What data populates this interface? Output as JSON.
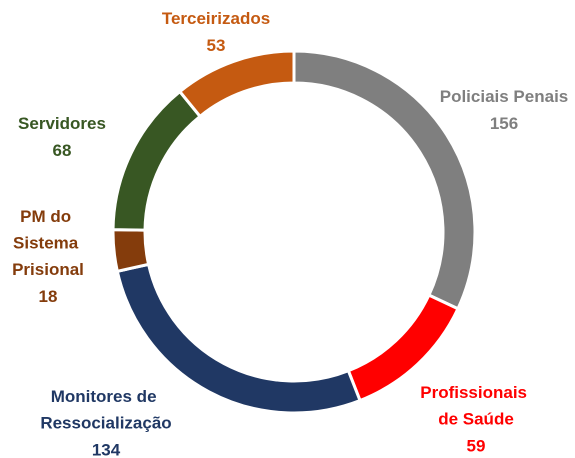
{
  "chart_data": {
    "type": "donut",
    "categories": [
      "Policiais Penais",
      "Profissionais de Saúde",
      "Monitores de Ressocialização",
      "PM do Sistema Prisional",
      "Servidores",
      "Terceirizados"
    ],
    "values": [
      156,
      59,
      134,
      18,
      68,
      53
    ],
    "colors": [
      "#7f7f7f",
      "#ff0000",
      "#203864",
      "#843c0c",
      "#385723",
      "#c55a11"
    ]
  }
}
